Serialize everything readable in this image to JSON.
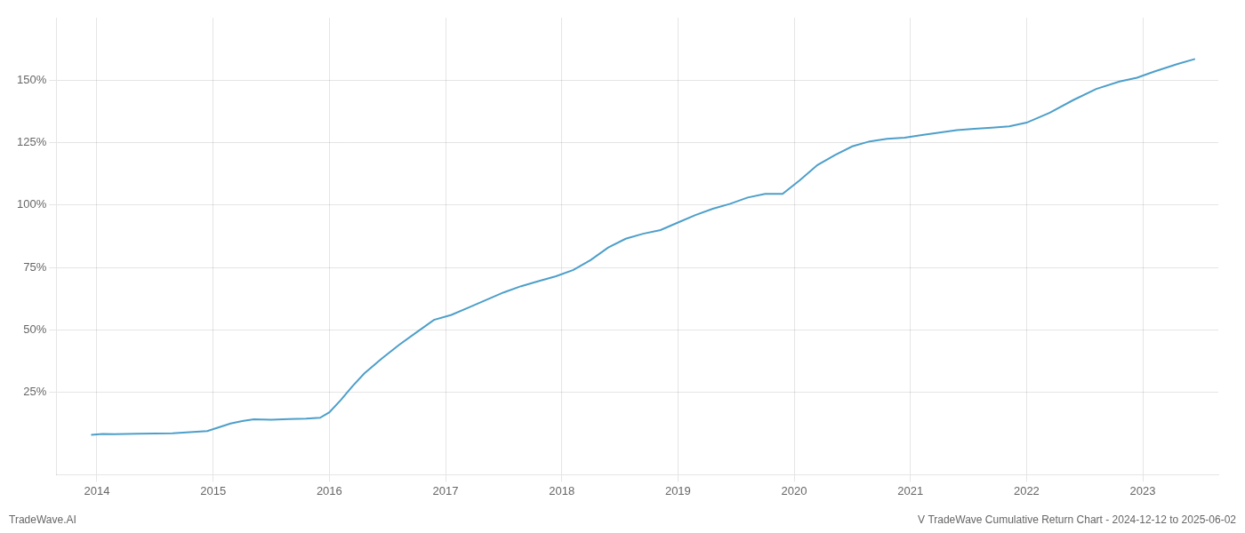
{
  "chart_data": {
    "type": "line",
    "title": "V TradeWave Cumulative Return Chart - 2024-12-12 to 2025-06-02",
    "annotations": [
      "TradeWave.AI"
    ],
    "x": [
      2013.95,
      2014.05,
      2014.15,
      2014.25,
      2014.35,
      2014.5,
      2014.65,
      2014.8,
      2014.95,
      2015.05,
      2015.15,
      2015.25,
      2015.35,
      2015.5,
      2015.65,
      2015.8,
      2015.92,
      2016.0,
      2016.1,
      2016.2,
      2016.3,
      2016.45,
      2016.6,
      2016.75,
      2016.9,
      2017.05,
      2017.2,
      2017.35,
      2017.5,
      2017.65,
      2017.8,
      2017.95,
      2018.1,
      2018.25,
      2018.4,
      2018.55,
      2018.7,
      2018.85,
      2019.0,
      2019.15,
      2019.3,
      2019.45,
      2019.6,
      2019.75,
      2019.9,
      2020.05,
      2020.2,
      2020.35,
      2020.5,
      2020.65,
      2020.8,
      2020.95,
      2021.1,
      2021.25,
      2021.4,
      2021.55,
      2021.7,
      2021.85,
      2022.0,
      2022.2,
      2022.4,
      2022.6,
      2022.8,
      2022.95,
      2023.1,
      2023.3,
      2023.45
    ],
    "values": [
      8.0,
      8.3,
      8.2,
      8.3,
      8.4,
      8.5,
      8.6,
      9.0,
      9.5,
      11.0,
      12.5,
      13.5,
      14.2,
      14.0,
      14.3,
      14.5,
      14.8,
      17.0,
      22.0,
      27.5,
      32.5,
      38.5,
      44.0,
      49.0,
      54.0,
      56.0,
      59.0,
      62.0,
      65.0,
      67.5,
      69.5,
      71.5,
      74.0,
      78.0,
      83.0,
      86.5,
      88.5,
      90.0,
      93.0,
      96.0,
      98.5,
      100.5,
      103.0,
      104.5,
      104.5,
      110.0,
      116.0,
      120.0,
      123.5,
      125.5,
      126.5,
      127.0,
      128.0,
      129.0,
      130.0,
      130.5,
      131.0,
      131.5,
      133.0,
      137.0,
      142.0,
      146.5,
      149.5,
      151.0,
      153.5,
      156.5,
      158.5
    ],
    "color": "#4d9fca",
    "xlim": [
      2013.65,
      2023.65
    ],
    "ylim": [
      -8,
      175
    ],
    "xticks": [
      2014,
      2015,
      2016,
      2017,
      2018,
      2019,
      2020,
      2021,
      2022,
      2023
    ],
    "yticks": [
      {
        "value": 25,
        "label": "25%"
      },
      {
        "value": 50,
        "label": "50%"
      },
      {
        "value": 75,
        "label": "75%"
      },
      {
        "value": 100,
        "label": "100%"
      },
      {
        "value": 125,
        "label": "125%"
      },
      {
        "value": 150,
        "label": "150%"
      }
    ],
    "grid": true
  }
}
